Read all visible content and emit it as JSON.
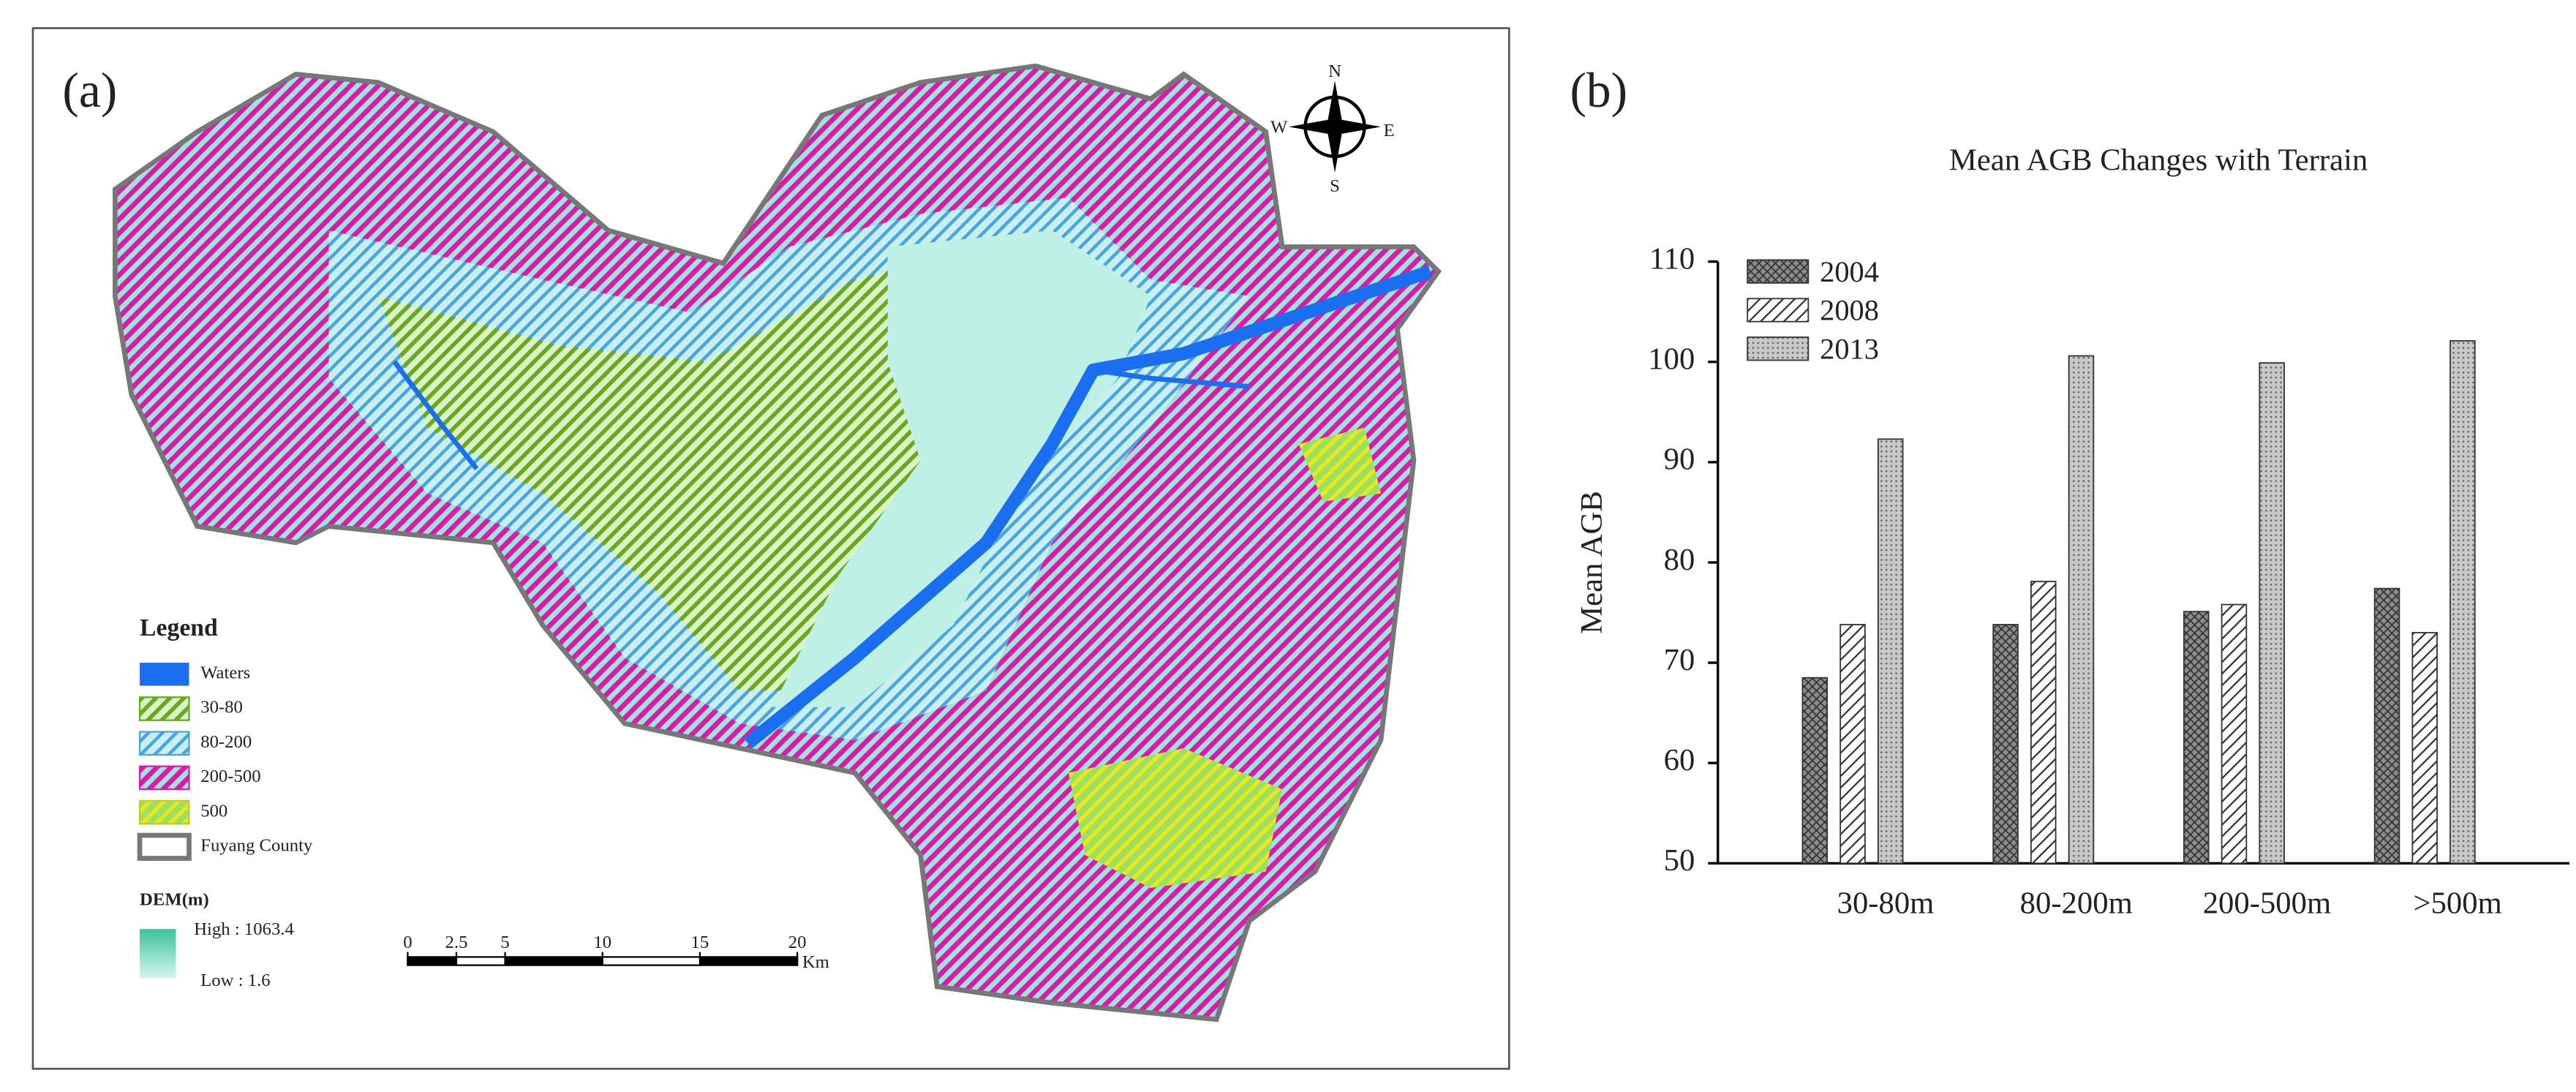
{
  "map": {
    "label": "(a)",
    "compass": {
      "n": "N",
      "e": "E",
      "s": "S",
      "w": "W"
    },
    "legend": {
      "title": "Legend",
      "items": [
        "Waters",
        "30-80",
        "80-200",
        "200-500",
        "500",
        "Fuyang County"
      ]
    },
    "dem": {
      "title": "DEM(m)",
      "high": "High : 1063.4",
      "low": "Low : 1.6"
    },
    "scale_bar": {
      "ticks": [
        0,
        2.5,
        5,
        10,
        15,
        20
      ],
      "unit": "Km"
    }
  },
  "chart_data": {
    "type": "bar",
    "label": "(b)",
    "title": "Mean AGB Changes with Terrain",
    "y_label": "Mean AGB",
    "categories": [
      "30-80m",
      "80-200m",
      "200-500m",
      ">500m"
    ],
    "series": [
      {
        "name": "2004",
        "color": "#8c8c8c",
        "pattern": "crosshatch",
        "values": [
          68.5,
          73.8,
          75.1,
          77.4
        ]
      },
      {
        "name": "2008",
        "color": "#ffffff",
        "pattern": "diagonal",
        "values": [
          73.8,
          78.1,
          75.8,
          73.0
        ]
      },
      {
        "name": "2013",
        "color": "#c8c8c8",
        "pattern": "dots",
        "values": [
          92.3,
          100.6,
          99.9,
          102.1
        ]
      }
    ],
    "ylim": [
      50,
      110
    ],
    "yticks": [
      50,
      60,
      70,
      80,
      90,
      100,
      110
    ],
    "legend": "top-left"
  }
}
